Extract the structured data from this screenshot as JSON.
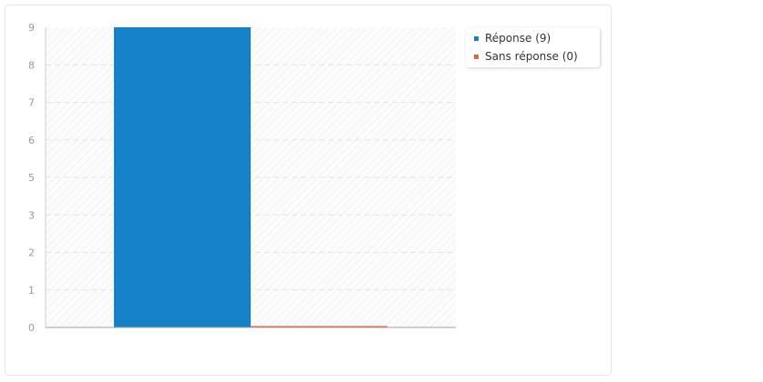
{
  "chart_data": {
    "type": "bar",
    "categories": [
      "Réponse",
      "Sans réponse"
    ],
    "series": [
      {
        "name": "Réponse (9)",
        "values": [
          9,
          null
        ],
        "color": "#1482c8"
      },
      {
        "name": "Sans réponse (0)",
        "values": [
          null,
          0
        ],
        "color": "#e0643c"
      }
    ],
    "values": [
      9,
      0
    ],
    "title": "",
    "xlabel": "",
    "ylabel": "",
    "ylim": [
      0,
      9
    ],
    "yticks": [
      "0",
      "1",
      "2",
      "3",
      "5",
      "6",
      "7",
      "8",
      "9"
    ],
    "grid": true,
    "legend_position": "right"
  },
  "legend": {
    "items": [
      {
        "label": "Réponse (9)",
        "color": "#1482c8"
      },
      {
        "label": "Sans réponse (0)",
        "color": "#e0643c"
      }
    ]
  }
}
